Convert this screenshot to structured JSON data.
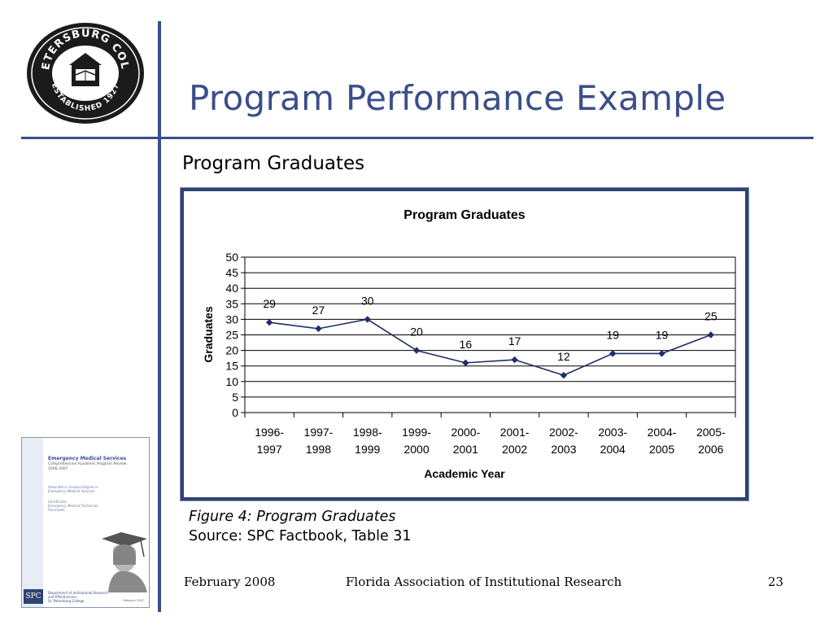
{
  "slide": {
    "title": "Program Performance Example",
    "subtitle": "Program Graduates",
    "caption_figure": "Figure 4: Program Graduates",
    "caption_source": "Source: SPC Factbook, Table 31"
  },
  "logo": {
    "text_top": "ST. PETERSBURG COLLEGE",
    "text_bottom": "ESTABLISHED 1927"
  },
  "report_cover": {
    "title": "Emergency Medical Services",
    "subtitle_1": "Comprehensive Academic Program Review",
    "subtitle_2": "2006-2007",
    "degree_1": "Associate in Science Degree in",
    "degree_2": "Emergency Medical Services",
    "cert_1": "Certificates",
    "cert_2": "Emergency Medical Technician",
    "cert_3": "Paramedic",
    "badge": "SPC",
    "dept_1": "Department of Institutional Research",
    "dept_2": "and Effectiveness",
    "dept_3": "St. Petersburg College",
    "date": "February 2007"
  },
  "footer": {
    "date": "February 2008",
    "organization": "Florida Association of Institutional Research",
    "page_number": "23"
  },
  "chart_data": {
    "type": "line",
    "title": "Program Graduates",
    "xlabel": "Academic Year",
    "ylabel": "Graduates",
    "categories": [
      [
        "1996-",
        "1997"
      ],
      [
        "1997-",
        "1998"
      ],
      [
        "1998-",
        "1999"
      ],
      [
        "1999-",
        "2000"
      ],
      [
        "2000-",
        "2001"
      ],
      [
        "2001-",
        "2002"
      ],
      [
        "2002-",
        "2003"
      ],
      [
        "2003-",
        "2004"
      ],
      [
        "2004-",
        "2005"
      ],
      [
        "2005-",
        "2006"
      ]
    ],
    "values": [
      29,
      27,
      30,
      20,
      16,
      17,
      12,
      19,
      19,
      25
    ],
    "ylim": [
      0,
      50
    ],
    "yticks": [
      0,
      5,
      10,
      15,
      20,
      25,
      30,
      35,
      40,
      45,
      50
    ],
    "grid": true,
    "legend": "none",
    "line_color": "#1f2d6b",
    "marker": "diamond"
  }
}
